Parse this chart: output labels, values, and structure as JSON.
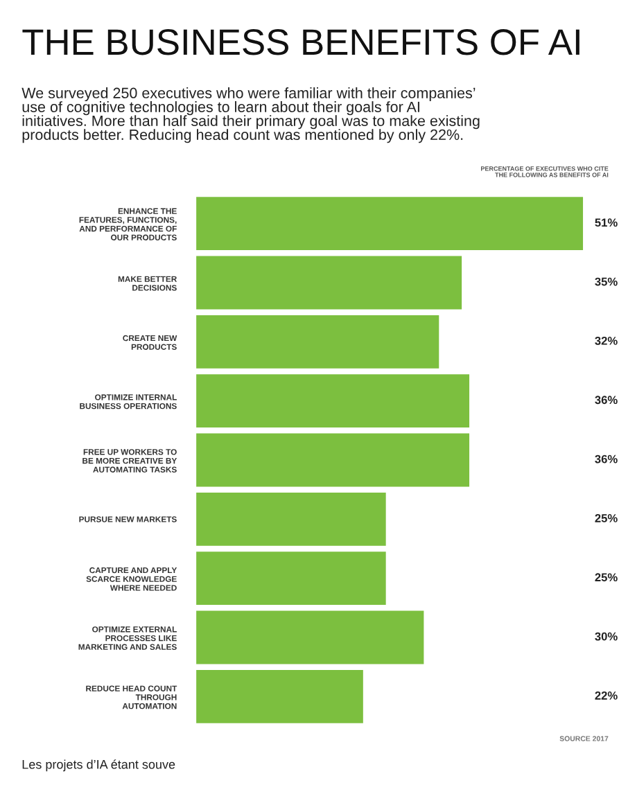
{
  "chart_data": {
    "type": "bar",
    "orientation": "horizontal",
    "title": "THE BUSINESS BENEFITS OF AI",
    "subtitle": "We surveyed 250 executives who were familiar with their companies’\nuse of cognitive technologies to learn about their goals for AI\ninitiatives. More than half said their primary goal was to make existing\nproducts better. Reducing head count was mentioned by only 22%.",
    "xlabel": "PERCENTAGE OF EXECUTIVES WHO CITE\nTHE FOLLOWING AS BENEFITS OF AI",
    "categories": [
      "ENHANCE THE\nFEATURES, FUNCTIONS,\nAND PERFORMANCE OF\nOUR PRODUCTS",
      "MAKE BETTER\nDECISIONS",
      "CREATE NEW\nPRODUCTS",
      "OPTIMIZE INTERNAL\nBUSINESS OPERATIONS",
      "FREE UP WORKERS TO\nBE MORE CREATIVE BY\nAUTOMATING TASKS",
      "PURSUE NEW MARKETS",
      "CAPTURE AND APPLY\nSCARCE KNOWLEDGE\nWHERE NEEDED",
      "OPTIMIZE EXTERNAL\nPROCESSES LIKE\nMARKETING AND SALES",
      "REDUCE HEAD COUNT\nTHROUGH\nAUTOMATION"
    ],
    "series": [
      {
        "color": "#7cbf3f",
        "values": [
          51,
          35,
          32,
          36,
          36,
          25,
          25,
          30,
          22
        ],
        "value_labels": [
          "51%",
          "35%",
          "32%",
          "36%",
          "36%",
          "25%",
          "25%",
          "30%",
          "22%"
        ]
      }
    ],
    "annotations": [
      "SOURCE 2017",
      "Les projets d’IA étant souve"
    ],
    "grid": false,
    "legend": false
  }
}
